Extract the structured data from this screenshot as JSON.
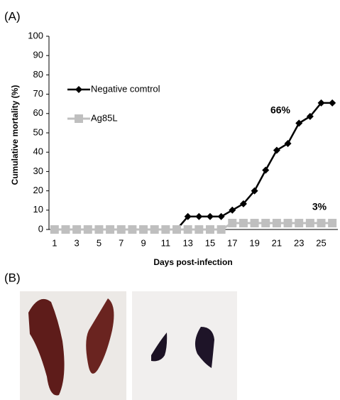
{
  "panel_labels": [
    "(A)",
    "(B)"
  ],
  "chart_data": {
    "type": "line",
    "x": [
      1,
      2,
      3,
      4,
      5,
      6,
      7,
      8,
      9,
      10,
      11,
      12,
      13,
      14,
      15,
      16,
      17,
      18,
      19,
      20,
      21,
      22,
      23,
      24,
      25,
      26
    ],
    "series": [
      {
        "name": "Negative comtrol",
        "color": "#000000",
        "marker": "diamond",
        "values": [
          0,
          0,
          0,
          0,
          0,
          0,
          0,
          0,
          0,
          0,
          0,
          0,
          6.7,
          6.7,
          6.7,
          6.7,
          10,
          13.3,
          20,
          30.7,
          41,
          44.5,
          55,
          58.5,
          65.5,
          65.5
        ]
      },
      {
        "name": "Ag85L",
        "color": "#bfbfbf",
        "marker": "square",
        "values": [
          0,
          0,
          0,
          0,
          0,
          0,
          0,
          0,
          0,
          0,
          0,
          0,
          0,
          0,
          0,
          0,
          3.3,
          3.3,
          3.3,
          3.3,
          3.3,
          3.3,
          3.3,
          3.3,
          3.3,
          3.3
        ]
      }
    ],
    "xlim": [
      0.5,
      26.5
    ],
    "xticks": [
      1,
      3,
      5,
      7,
      9,
      11,
      13,
      15,
      17,
      19,
      21,
      23,
      25
    ],
    "ylim": [
      0,
      100
    ],
    "yticks": [
      0,
      10,
      20,
      30,
      40,
      50,
      60,
      70,
      80,
      90,
      100
    ],
    "x_label": "Days post-infection",
    "y_label": "Cumulative mortality  (%)",
    "annotations": [
      "66%",
      "3%"
    ],
    "grid": false,
    "legend": "upper left"
  }
}
